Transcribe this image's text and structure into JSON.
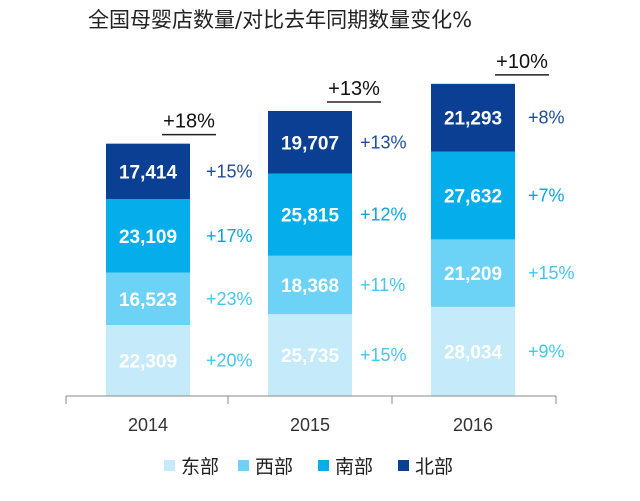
{
  "chart_data": {
    "type": "bar",
    "stacked": true,
    "title": "全国母婴店数量/对比去年同期数量变化%",
    "categories": [
      "2014",
      "2015",
      "2016"
    ],
    "series": [
      {
        "name": "东部",
        "color": "#c5ebfa",
        "label_color": "#ffffff",
        "growth_color": "#42c7f0",
        "values": [
          22309,
          25735,
          28034
        ],
        "growth": [
          "+20%",
          "+15%",
          "+9%"
        ],
        "value_labels": [
          "22,309",
          "25,735",
          "28,034"
        ]
      },
      {
        "name": "西部",
        "color": "#6dd3f6",
        "label_color": "#ffffff",
        "growth_color": "#42c7f0",
        "values": [
          16523,
          18368,
          21209
        ],
        "growth": [
          "+23%",
          "+11%",
          "+15%"
        ],
        "value_labels": [
          "16,523",
          "18,368",
          "21,209"
        ]
      },
      {
        "name": "南部",
        "color": "#05aeea",
        "label_color": "#ffffff",
        "growth_color": "#0ba5dc",
        "values": [
          23109,
          25815,
          27632
        ],
        "growth": [
          "+17%",
          "+12%",
          "+7%"
        ],
        "value_labels": [
          "23,109",
          "25,815",
          "27,632"
        ]
      },
      {
        "name": "北部",
        "color": "#0a3f93",
        "label_color": "#ffffff",
        "growth_color": "#1e4b9a",
        "values": [
          17414,
          19707,
          21293
        ],
        "growth": [
          "+15%",
          "+13%",
          "+8%"
        ],
        "value_labels": [
          "17,414",
          "19,707",
          "21,293"
        ]
      }
    ],
    "totals_growth": [
      "+18%",
      "+13%",
      "+10%"
    ],
    "ylim": [
      0,
      100000
    ],
    "grid": false,
    "legend_position": "bottom"
  }
}
